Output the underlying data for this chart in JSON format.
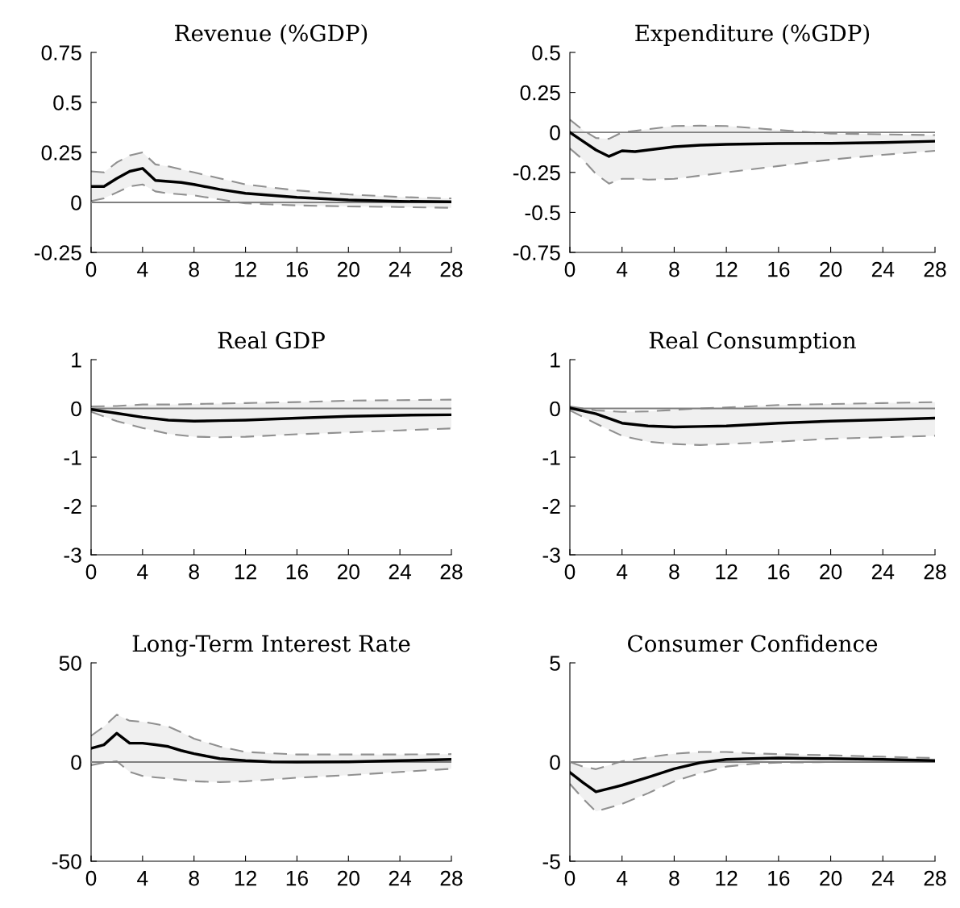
{
  "chart_data": [
    {
      "type": "line",
      "title": "Revenue (%GDP)",
      "xlim": [
        0,
        28
      ],
      "xticks": [
        0,
        4,
        8,
        12,
        16,
        20,
        24,
        28
      ],
      "ylim": [
        -0.25,
        0.75
      ],
      "yticks": [
        -0.25,
        0,
        0.25,
        0.5,
        0.75
      ],
      "grid": false,
      "legend": false,
      "ref_lines": [
        {
          "axis": "y",
          "value": 0,
          "color": "#808080"
        }
      ],
      "series": [
        {
          "color": "#000000",
          "x": [
            0,
            1,
            2,
            3,
            4,
            5,
            6,
            7,
            8,
            10,
            12,
            14,
            16,
            20,
            24,
            28
          ],
          "values": [
            0.08,
            0.08,
            0.12,
            0.155,
            0.17,
            0.11,
            0.105,
            0.1,
            0.09,
            0.065,
            0.045,
            0.035,
            0.025,
            0.012,
            0.005,
            0.003
          ],
          "lower": [
            0.007,
            0.02,
            0.05,
            0.08,
            0.09,
            0.055,
            0.045,
            0.04,
            0.035,
            0.015,
            -0.005,
            -0.01,
            -0.015,
            -0.02,
            -0.023,
            -0.027
          ],
          "upper": [
            0.155,
            0.15,
            0.2,
            0.235,
            0.25,
            0.19,
            0.18,
            0.165,
            0.15,
            0.12,
            0.09,
            0.075,
            0.06,
            0.04,
            0.027,
            0.02
          ]
        },
        {
          "color": "#909090",
          "line_style": "dashed",
          "x": [
            0,
            1,
            2,
            3,
            4,
            5,
            6,
            7,
            8,
            10,
            12,
            14,
            16,
            20,
            24,
            28
          ],
          "values": [
            0.007,
            0.02,
            0.05,
            0.08,
            0.09,
            0.055,
            0.045,
            0.04,
            0.035,
            0.015,
            -0.005,
            -0.01,
            -0.015,
            -0.02,
            -0.023,
            -0.027
          ]
        },
        {
          "color": "#909090",
          "line_style": "dashed",
          "x": [
            0,
            1,
            2,
            3,
            4,
            5,
            6,
            7,
            8,
            10,
            12,
            14,
            16,
            20,
            24,
            28
          ],
          "values": [
            0.155,
            0.15,
            0.2,
            0.235,
            0.25,
            0.19,
            0.18,
            0.165,
            0.15,
            0.12,
            0.09,
            0.075,
            0.06,
            0.04,
            0.027,
            0.02
          ]
        }
      ]
    },
    {
      "type": "line",
      "title": "Expenditure (%GDP)",
      "xlim": [
        0,
        28
      ],
      "xticks": [
        0,
        4,
        8,
        12,
        16,
        20,
        24,
        28
      ],
      "ylim": [
        -0.75,
        0.5
      ],
      "yticks": [
        -0.75,
        -0.5,
        -0.25,
        0,
        0.25,
        0.5
      ],
      "grid": false,
      "legend": false,
      "ref_lines": [
        {
          "axis": "y",
          "value": 0,
          "color": "#808080"
        }
      ],
      "series": [
        {
          "color": "#000000",
          "x": [
            0,
            1,
            2,
            3,
            4,
            5,
            6,
            8,
            10,
            12,
            16,
            20,
            24,
            28
          ],
          "values": [
            0,
            -0.055,
            -0.11,
            -0.15,
            -0.115,
            -0.12,
            -0.11,
            -0.09,
            -0.08,
            -0.075,
            -0.07,
            -0.068,
            -0.063,
            -0.055
          ],
          "lower": [
            -0.1,
            -0.17,
            -0.26,
            -0.32,
            -0.29,
            -0.29,
            -0.295,
            -0.29,
            -0.27,
            -0.25,
            -0.21,
            -0.17,
            -0.14,
            -0.115
          ],
          "upper": [
            0.08,
            0.015,
            -0.035,
            -0.04,
            0,
            0.01,
            0.02,
            0.04,
            0.042,
            0.04,
            0.015,
            -0.007,
            -0.012,
            -0.017
          ]
        },
        {
          "color": "#909090",
          "line_style": "dashed",
          "x": [
            0,
            1,
            2,
            3,
            4,
            5,
            6,
            8,
            10,
            12,
            16,
            20,
            24,
            28
          ],
          "values": [
            -0.1,
            -0.17,
            -0.26,
            -0.32,
            -0.29,
            -0.29,
            -0.295,
            -0.29,
            -0.27,
            -0.25,
            -0.21,
            -0.17,
            -0.14,
            -0.115
          ]
        },
        {
          "color": "#909090",
          "line_style": "dashed",
          "x": [
            0,
            1,
            2,
            3,
            4,
            5,
            6,
            8,
            10,
            12,
            16,
            20,
            24,
            28
          ],
          "values": [
            0.08,
            0.015,
            -0.035,
            -0.04,
            0,
            0.01,
            0.02,
            0.04,
            0.042,
            0.04,
            0.015,
            -0.007,
            -0.012,
            -0.017
          ]
        }
      ]
    },
    {
      "type": "line",
      "title": "Real GDP",
      "xlim": [
        0,
        28
      ],
      "xticks": [
        0,
        4,
        8,
        12,
        16,
        20,
        24,
        28
      ],
      "ylim": [
        -3,
        1
      ],
      "yticks": [
        -3,
        -2,
        -1,
        0,
        1
      ],
      "grid": false,
      "legend": false,
      "ref_lines": [
        {
          "axis": "y",
          "value": 0,
          "color": "#808080"
        }
      ],
      "series": [
        {
          "color": "#000000",
          "x": [
            0,
            2,
            4,
            6,
            8,
            10,
            12,
            16,
            20,
            24,
            28
          ],
          "values": [
            -0.02,
            -0.1,
            -0.18,
            -0.24,
            -0.26,
            -0.25,
            -0.24,
            -0.2,
            -0.16,
            -0.14,
            -0.13
          ],
          "lower": [
            -0.07,
            -0.26,
            -0.4,
            -0.52,
            -0.58,
            -0.59,
            -0.58,
            -0.53,
            -0.49,
            -0.45,
            -0.41
          ],
          "upper": [
            0.04,
            0.05,
            0.08,
            0.08,
            0.09,
            0.1,
            0.11,
            0.13,
            0.16,
            0.17,
            0.18
          ]
        },
        {
          "color": "#909090",
          "line_style": "dashed",
          "x": [
            0,
            2,
            4,
            6,
            8,
            10,
            12,
            16,
            20,
            24,
            28
          ],
          "values": [
            -0.07,
            -0.26,
            -0.4,
            -0.52,
            -0.58,
            -0.59,
            -0.58,
            -0.53,
            -0.49,
            -0.45,
            -0.41
          ]
        },
        {
          "color": "#909090",
          "line_style": "dashed",
          "x": [
            0,
            2,
            4,
            6,
            8,
            10,
            12,
            16,
            20,
            24,
            28
          ],
          "values": [
            0.04,
            0.05,
            0.08,
            0.08,
            0.09,
            0.1,
            0.11,
            0.13,
            0.16,
            0.17,
            0.18
          ]
        }
      ]
    },
    {
      "type": "line",
      "title": "Real Consumption",
      "xlim": [
        0,
        28
      ],
      "xticks": [
        0,
        4,
        8,
        12,
        16,
        20,
        24,
        28
      ],
      "ylim": [
        -3,
        1
      ],
      "yticks": [
        -3,
        -2,
        -1,
        0,
        1
      ],
      "grid": false,
      "legend": false,
      "ref_lines": [
        {
          "axis": "y",
          "value": 0,
          "color": "#808080"
        }
      ],
      "series": [
        {
          "color": "#000000",
          "x": [
            0,
            2,
            4,
            6,
            8,
            10,
            12,
            16,
            20,
            24,
            28
          ],
          "values": [
            0.01,
            -0.11,
            -0.3,
            -0.36,
            -0.38,
            -0.37,
            -0.36,
            -0.3,
            -0.26,
            -0.23,
            -0.2
          ],
          "lower": [
            -0.04,
            -0.31,
            -0.56,
            -0.68,
            -0.73,
            -0.75,
            -0.73,
            -0.68,
            -0.62,
            -0.59,
            -0.56
          ],
          "upper": [
            0.04,
            -0.04,
            -0.07,
            -0.06,
            -0.03,
            0,
            0.02,
            0.07,
            0.09,
            0.11,
            0.13
          ]
        },
        {
          "color": "#909090",
          "line_style": "dashed",
          "x": [
            0,
            2,
            4,
            6,
            8,
            10,
            12,
            16,
            20,
            24,
            28
          ],
          "values": [
            -0.04,
            -0.31,
            -0.56,
            -0.68,
            -0.73,
            -0.75,
            -0.73,
            -0.68,
            -0.62,
            -0.59,
            -0.56
          ]
        },
        {
          "color": "#909090",
          "line_style": "dashed",
          "x": [
            0,
            2,
            4,
            6,
            8,
            10,
            12,
            16,
            20,
            24,
            28
          ],
          "values": [
            0.04,
            -0.04,
            -0.07,
            -0.06,
            -0.03,
            0,
            0.02,
            0.07,
            0.09,
            0.11,
            0.13
          ]
        }
      ]
    },
    {
      "type": "line",
      "title": "Long-Term Interest Rate",
      "xlim": [
        0,
        28
      ],
      "xticks": [
        0,
        4,
        8,
        12,
        16,
        20,
        24,
        28
      ],
      "ylim": [
        -50,
        50
      ],
      "yticks": [
        -50,
        0,
        50
      ],
      "grid": false,
      "legend": false,
      "ref_lines": [
        {
          "axis": "y",
          "value": 0,
          "color": "#808080"
        }
      ],
      "series": [
        {
          "color": "#000000",
          "x": [
            0,
            1,
            2,
            3,
            4,
            5,
            6,
            7,
            8,
            10,
            12,
            14,
            16,
            20,
            24,
            28
          ],
          "values": [
            6.9,
            8.7,
            14.5,
            9.5,
            9.5,
            8.7,
            7.8,
            5.8,
            4.2,
            1.7,
            0.7,
            0.1,
            0,
            0.1,
            0.7,
            1.3
          ],
          "lower": [
            -1.6,
            -0.3,
            0.4,
            -5,
            -7,
            -7.7,
            -8.3,
            -9,
            -9.7,
            -10.1,
            -9.7,
            -8.8,
            -7.9,
            -6.6,
            -5,
            -3.4
          ],
          "upper": [
            13.2,
            17.9,
            23.9,
            20.8,
            20.3,
            19.2,
            17.9,
            15,
            11.8,
            7.8,
            5.1,
            4.4,
            3.8,
            3.8,
            3.8,
            4
          ]
        },
        {
          "color": "#909090",
          "line_style": "dashed",
          "x": [
            0,
            1,
            2,
            3,
            4,
            5,
            6,
            7,
            8,
            10,
            12,
            14,
            16,
            20,
            24,
            28
          ],
          "values": [
            -1.6,
            -0.3,
            0.4,
            -5,
            -7,
            -7.7,
            -8.3,
            -9,
            -9.7,
            -10.1,
            -9.7,
            -8.8,
            -7.9,
            -6.6,
            -5,
            -3.4
          ]
        },
        {
          "color": "#909090",
          "line_style": "dashed",
          "x": [
            0,
            1,
            2,
            3,
            4,
            5,
            6,
            7,
            8,
            10,
            12,
            14,
            16,
            20,
            24,
            28
          ],
          "values": [
            13.2,
            17.9,
            23.9,
            20.8,
            20.3,
            19.2,
            17.9,
            15,
            11.8,
            7.8,
            5.1,
            4.4,
            3.8,
            3.8,
            3.8,
            4
          ]
        }
      ]
    },
    {
      "type": "line",
      "title": "Consumer Confidence",
      "xlim": [
        0,
        28
      ],
      "xticks": [
        0,
        4,
        8,
        12,
        16,
        20,
        24,
        28
      ],
      "ylim": [
        -5,
        5
      ],
      "yticks": [
        -5,
        0,
        5
      ],
      "grid": false,
      "legend": false,
      "ref_lines": [
        {
          "axis": "y",
          "value": 0,
          "color": "#808080"
        }
      ],
      "series": [
        {
          "color": "#000000",
          "x": [
            0,
            1,
            2,
            4,
            6,
            8,
            10,
            12,
            14,
            16,
            20,
            24,
            28
          ],
          "values": [
            -0.52,
            -1.03,
            -1.5,
            -1.17,
            -0.77,
            -0.34,
            -0.03,
            0.13,
            0.17,
            0.2,
            0.17,
            0.13,
            0.07
          ],
          "lower": [
            -1.1,
            -1.84,
            -2.49,
            -2.11,
            -1.57,
            -0.97,
            -0.56,
            -0.23,
            -0.09,
            -0.03,
            0,
            0,
            0
          ],
          "upper": [
            0,
            -0.23,
            -0.36,
            0.04,
            0.24,
            0.42,
            0.51,
            0.51,
            0.44,
            0.4,
            0.34,
            0.27,
            0.2
          ]
        },
        {
          "color": "#909090",
          "line_style": "dashed",
          "x": [
            0,
            1,
            2,
            4,
            6,
            8,
            10,
            12,
            14,
            16,
            20,
            24,
            28
          ],
          "values": [
            -1.1,
            -1.84,
            -2.49,
            -2.11,
            -1.57,
            -0.97,
            -0.56,
            -0.23,
            -0.09,
            -0.03,
            0,
            0,
            0
          ]
        },
        {
          "color": "#909090",
          "line_style": "dashed",
          "x": [
            0,
            1,
            2,
            4,
            6,
            8,
            10,
            12,
            14,
            16,
            20,
            24,
            28
          ],
          "values": [
            0,
            -0.23,
            -0.36,
            0.04,
            0.24,
            0.42,
            0.51,
            0.51,
            0.44,
            0.4,
            0.34,
            0.27,
            0.2
          ]
        }
      ]
    }
  ]
}
